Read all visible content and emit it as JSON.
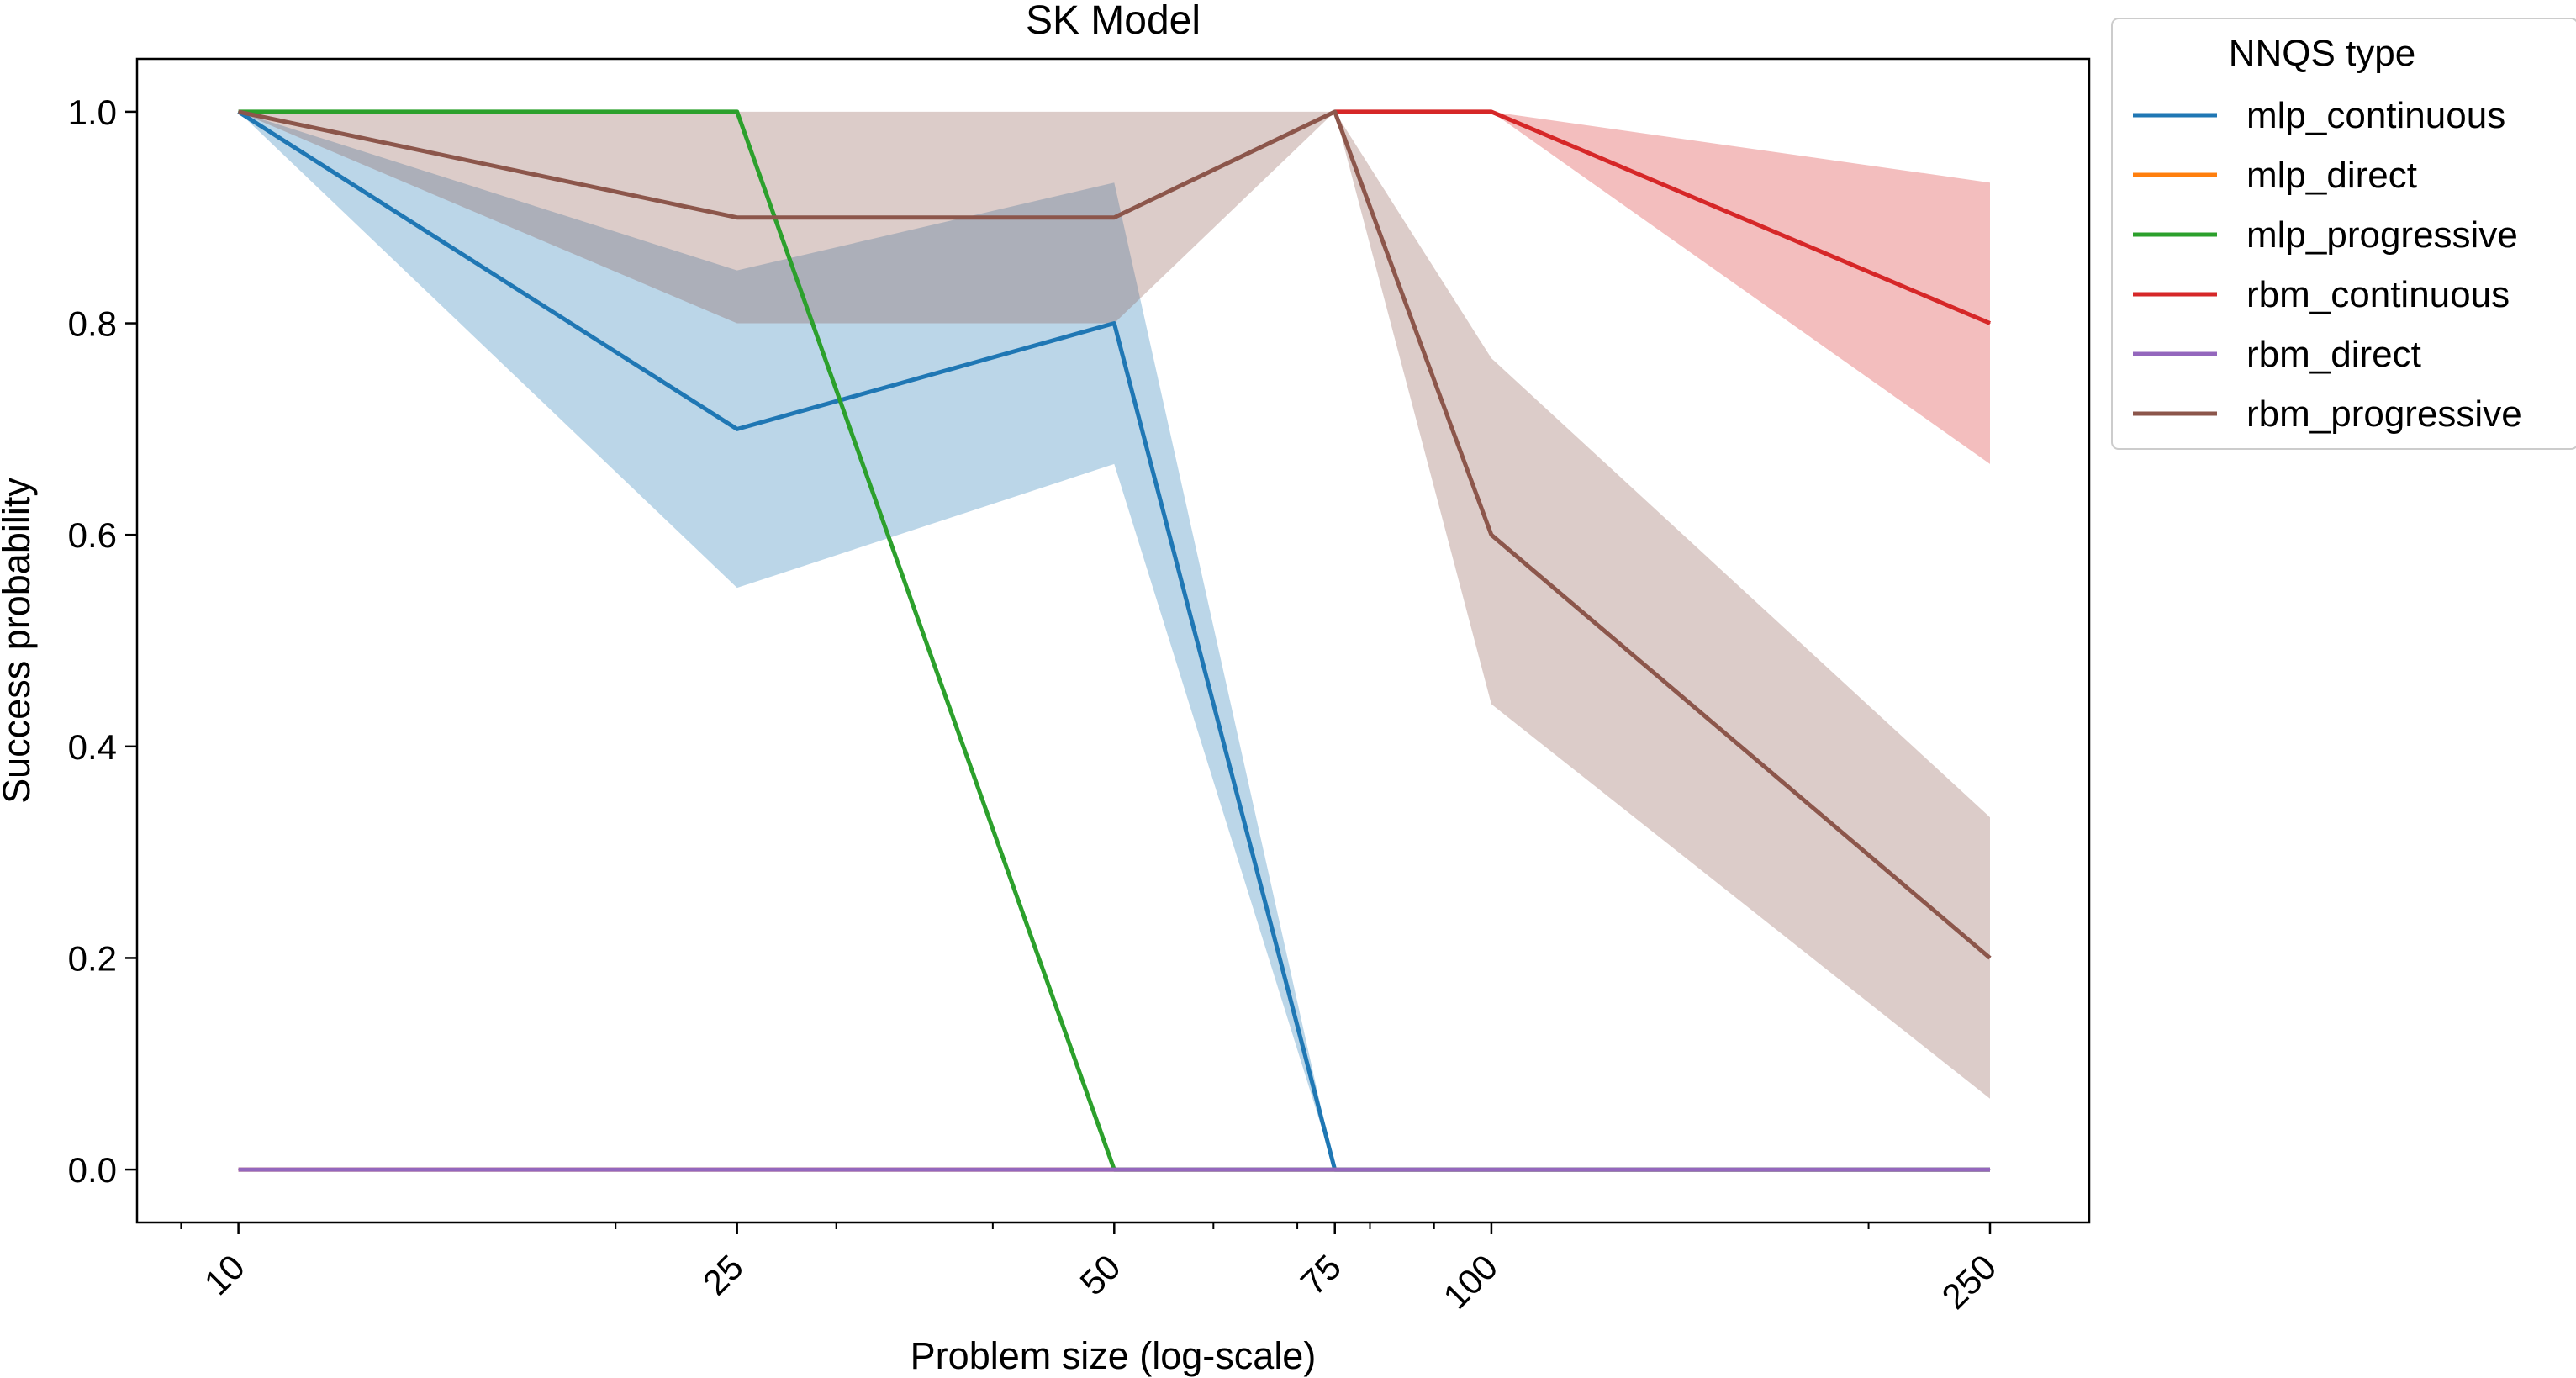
{
  "chart_data": {
    "type": "line",
    "title": "SK Model",
    "xlabel": "Problem size (log-scale)",
    "ylabel": "Success probability",
    "x_scale": "log",
    "x": [
      10,
      25,
      50,
      75,
      100,
      250
    ],
    "x_tick_labels": [
      "10",
      "25",
      "50",
      "75",
      "100",
      "250"
    ],
    "xlim": [
      8.3,
      300
    ],
    "ylim": [
      -0.05,
      1.05
    ],
    "y_ticks": [
      0.0,
      0.2,
      0.4,
      0.6,
      0.8,
      1.0
    ],
    "y_tick_labels": [
      "0.0",
      "0.2",
      "0.4",
      "0.6",
      "0.8",
      "1.0"
    ],
    "grid": false,
    "legend": {
      "title": "NNQS type",
      "placement": "outside right, top"
    },
    "series": [
      {
        "name": "mlp_continuous",
        "color": "#1f77b4",
        "values": [
          1.0,
          0.7,
          0.8,
          0.0,
          0.0,
          0.0
        ],
        "lower": [
          1.0,
          0.55,
          0.667,
          0.0,
          0.0,
          0.0
        ],
        "upper": [
          1.0,
          0.85,
          0.933,
          0.0,
          0.0,
          0.0
        ]
      },
      {
        "name": "mlp_direct",
        "color": "#ff7f0e",
        "values": [
          0.0,
          0.0,
          0.0,
          0.0,
          0.0,
          0.0
        ]
      },
      {
        "name": "mlp_progressive",
        "color": "#2ca02c",
        "values": [
          1.0,
          1.0,
          0.0,
          0.0,
          0.0,
          0.0
        ]
      },
      {
        "name": "rbm_continuous",
        "color": "#d62728",
        "values": [
          null,
          null,
          null,
          1.0,
          1.0,
          0.8
        ],
        "lower": [
          null,
          null,
          null,
          1.0,
          1.0,
          0.667
        ],
        "upper": [
          null,
          null,
          null,
          1.0,
          1.0,
          0.933
        ]
      },
      {
        "name": "rbm_direct",
        "color": "#9467bd",
        "values": [
          0.0,
          0.0,
          0.0,
          0.0,
          0.0,
          0.0
        ]
      },
      {
        "name": "rbm_progressive",
        "color": "#8c564b",
        "values": [
          1.0,
          0.9,
          0.9,
          1.0,
          0.6,
          0.2
        ],
        "lower": [
          1.0,
          0.8,
          0.8,
          1.0,
          0.44,
          0.067
        ],
        "upper": [
          1.0,
          1.0,
          1.0,
          1.0,
          0.767,
          0.333
        ]
      }
    ]
  }
}
